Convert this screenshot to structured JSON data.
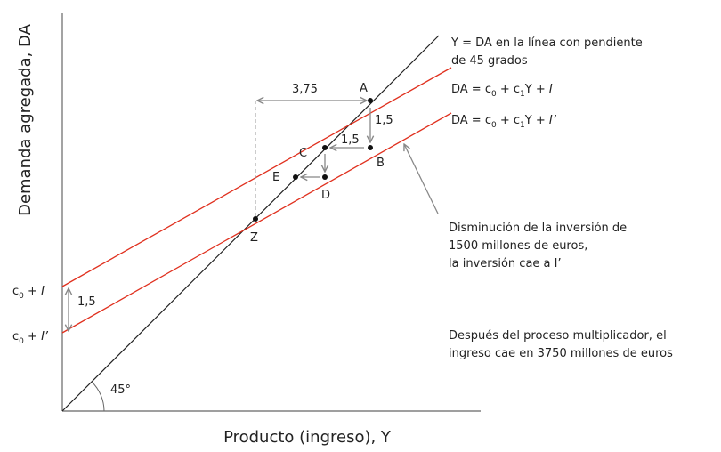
{
  "axes": {
    "y_label": "Demanda agregada, DA",
    "x_label": "Producto (ingreso), Y",
    "angle": "45°"
  },
  "points": {
    "A": "A",
    "B": "B",
    "C": "C",
    "D": "D",
    "E": "E",
    "Z": "Z"
  },
  "steps": {
    "multiplier_gap": "3,75",
    "drop_AB": "1,5",
    "drop_CB": "1,5",
    "intercept_gap": "1,5"
  },
  "intercepts": [
    {
      "c": "c",
      "sub": "0",
      "plus": " + ",
      "inv": "I"
    },
    {
      "c": "c",
      "sub": "0",
      "plus": " + ",
      "inv": "I’"
    }
  ],
  "legend": {
    "line45": [
      "Y = DA en la línea con pendiente",
      "de 45 grados"
    ],
    "da1": {
      "a": "DA = c",
      "s0": "0",
      "b": " + c",
      "s1": "1",
      "c": "Y + ",
      "inv": "I"
    },
    "da2": {
      "a": "DA = c",
      "s0": "0",
      "b": " + c",
      "s1": "1",
      "c": "Y + ",
      "inv": "I’"
    }
  },
  "notes": {
    "decrease": [
      "Disminución de la inversión de",
      "1500 millones de euros,",
      "la inversión cae a I’"
    ],
    "after": [
      "Después del proceso multiplicador, el",
      "ingreso cae en 3750 millones de euros"
    ]
  }
}
